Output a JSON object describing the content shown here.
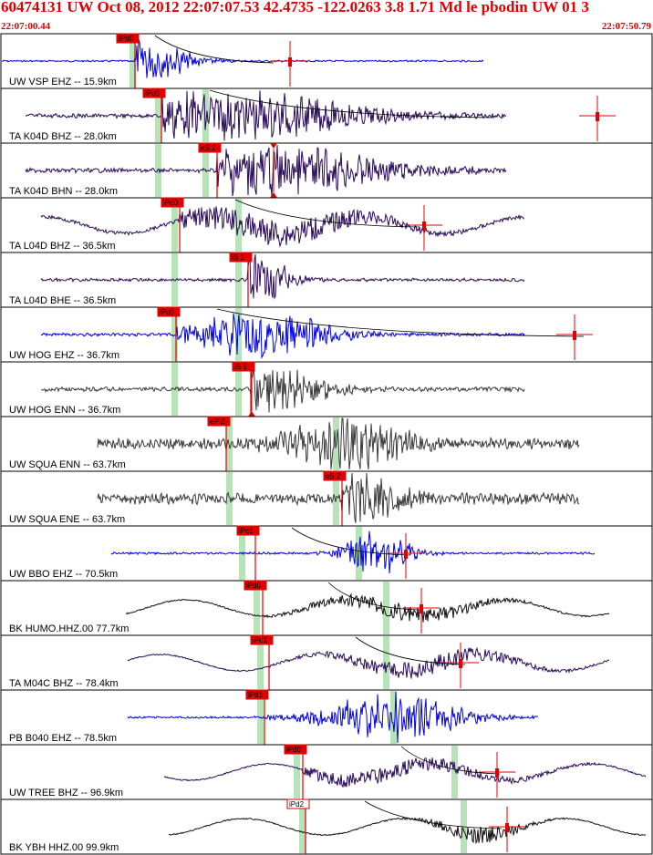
{
  "header": {
    "title": "60474131 UW Oct 08, 2012 22:07:07.53   42.4735 -122.0263  3.8 1.71 Md le pbodin UW 01    3",
    "start_time": "22:07:00.44",
    "end_time": "22:07:50.79"
  },
  "colors": {
    "header_text": "#e00000",
    "pick_box": "#e00000",
    "pick_line": "#e00000",
    "phase_band": "#b8e2b8",
    "trace_blue": "#0000e8",
    "trace_purple": "#2a0a5a",
    "trace_gray": "#3a3a3a",
    "trace_black": "#101010",
    "panel_border": "#000000",
    "coda_curve": "#000000"
  },
  "traces": [
    {
      "label": "UW VSP EHZ -- 15.9km",
      "color": "blue",
      "pick": "iPd0"
    },
    {
      "label": "TA K04D BHZ -- 28.0km",
      "color": "purple",
      "pick": "iPc0"
    },
    {
      "label": "TA K04D BHN -- 28.0km",
      "color": "purple",
      "pick": "eS 2"
    },
    {
      "label": "TA L04D BHZ -- 36.5km",
      "color": "purple",
      "pick": "iPd0"
    },
    {
      "label": "TA L04D BHE -- 36.5km",
      "color": "purple",
      "pick": "iS 1"
    },
    {
      "label": "UW HOG EHZ -- 36.7km",
      "color": "blue",
      "pick": "iPc0"
    },
    {
      "label": "UW HOG ENN -- 36.7km",
      "color": "gray",
      "pick": "iS 1"
    },
    {
      "label": "UW SQUA ENN -- 63.7km",
      "color": "gray",
      "pick": "eP 2"
    },
    {
      "label": "UW SQUA ENE -- 63.7km",
      "color": "gray",
      "pick": "eS 2"
    },
    {
      "label": "UW BBO EHZ -- 70.5km",
      "color": "blue",
      "pick": "iPc1"
    },
    {
      "label": "BK HUMO.HHZ.00 77.7km",
      "color": "black",
      "pick": "iPd0"
    },
    {
      "label": "TA M04C BHZ -- 78.4km",
      "color": "purple",
      "pick": "iPd1"
    },
    {
      "label": "PB B040 EHZ -- 78.5km",
      "color": "blue",
      "pick": "iPd1"
    },
    {
      "label": "UW TREE BHZ -- 96.9km",
      "color": "purple",
      "pick": "iPd0"
    },
    {
      "label": "BK YBH HHZ.00 99.9km",
      "color": "black",
      "pick": "iPd2"
    }
  ]
}
